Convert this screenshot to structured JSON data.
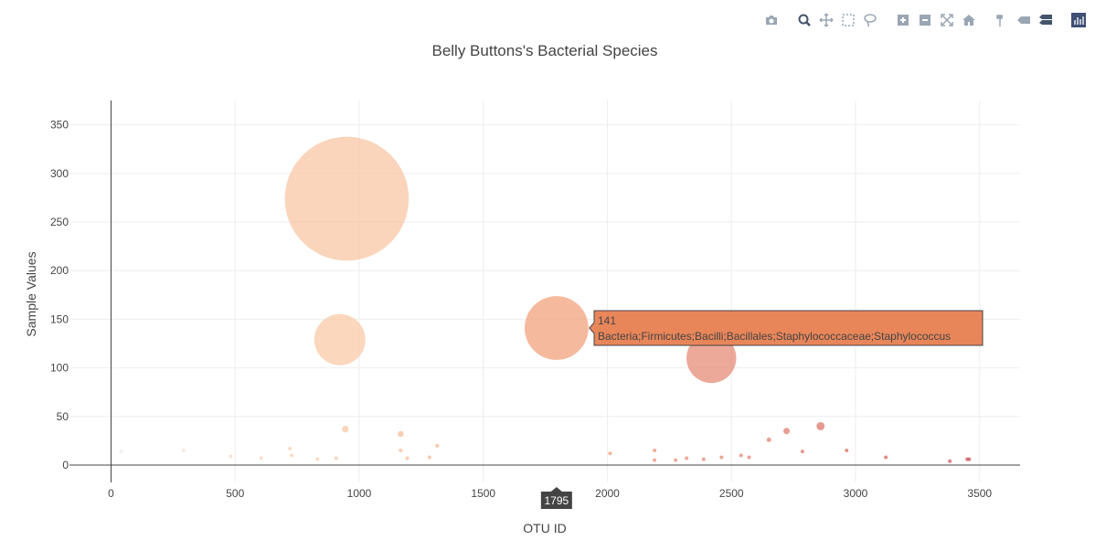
{
  "chart_data": {
    "type": "scatter",
    "title": "Belly Buttons's Bacterial Species",
    "xlabel": "OTU ID",
    "ylabel": "Sample Values",
    "xlim": [
      -160,
      3660
    ],
    "ylim": [
      -10,
      372
    ],
    "x_ticks": [
      "0",
      "500",
      "1000",
      "1500",
      "2000",
      "2500",
      "3000",
      "3500"
    ],
    "y_ticks": [
      "0",
      "50",
      "100",
      "150",
      "200",
      "250",
      "300",
      "350"
    ],
    "grid": true,
    "points": [
      {
        "x": 40,
        "y": 14,
        "size": 3
      },
      {
        "x": 292,
        "y": 15,
        "size": 3
      },
      {
        "x": 482,
        "y": 9,
        "size": 1
      },
      {
        "x": 605,
        "y": 7,
        "size": 1
      },
      {
        "x": 721,
        "y": 17,
        "size": 3
      },
      {
        "x": 728,
        "y": 10,
        "size": 1
      },
      {
        "x": 832,
        "y": 6,
        "size": 1
      },
      {
        "x": 907,
        "y": 7,
        "size": 1
      },
      {
        "x": 922,
        "y": 129,
        "size": 113
      },
      {
        "x": 944,
        "y": 37,
        "size": 15
      },
      {
        "x": 950,
        "y": 274,
        "size": 274
      },
      {
        "x": 1167,
        "y": 32,
        "size": 13
      },
      {
        "x": 1167,
        "y": 15,
        "size": 4
      },
      {
        "x": 1193,
        "y": 7,
        "size": 1
      },
      {
        "x": 1283,
        "y": 8,
        "size": 1
      },
      {
        "x": 1314,
        "y": 20,
        "size": 6
      },
      {
        "x": 1795,
        "y": 141,
        "size": 141
      },
      {
        "x": 2011,
        "y": 12,
        "size": 3
      },
      {
        "x": 2190,
        "y": 15,
        "size": 4
      },
      {
        "x": 2190,
        "y": 5,
        "size": 1
      },
      {
        "x": 2275,
        "y": 5,
        "size": 1
      },
      {
        "x": 2319,
        "y": 7,
        "size": 1
      },
      {
        "x": 2388,
        "y": 6,
        "size": 1
      },
      {
        "x": 2419,
        "y": 110,
        "size": 110
      },
      {
        "x": 2460,
        "y": 8,
        "size": 1
      },
      {
        "x": 2539,
        "y": 10,
        "size": 1
      },
      {
        "x": 2571,
        "y": 8,
        "size": 1
      },
      {
        "x": 2651,
        "y": 26,
        "size": 10
      },
      {
        "x": 2722,
        "y": 35,
        "size": 14
      },
      {
        "x": 2786,
        "y": 14,
        "size": 3
      },
      {
        "x": 2859,
        "y": 40,
        "size": 18
      },
      {
        "x": 2964,
        "y": 15,
        "size": 4
      },
      {
        "x": 3122,
        "y": 8,
        "size": 2
      },
      {
        "x": 3380,
        "y": 4,
        "size": 1
      },
      {
        "x": 3450,
        "y": 6,
        "size": 1
      },
      {
        "x": 3458,
        "y": 6,
        "size": 1
      }
    ],
    "hover": {
      "value": "141",
      "label": "Bacteria;Firmicutes;Bacilli;Bacillales;Staphylococcaceae;Staphylococcus",
      "x_value": "1795",
      "color": "#e8865a"
    },
    "colorscale": [
      "#eeeeee",
      "#f9c9a5",
      "#f2a07a",
      "#e07e6e",
      "#cc4c50"
    ]
  },
  "modebar": {
    "buttons": [
      {
        "icon": "camera-icon",
        "name": "download-plot-button"
      },
      {
        "icon": "zoom-icon",
        "name": "zoom-button"
      },
      {
        "icon": "pan-icon",
        "name": "pan-button"
      },
      {
        "icon": "box-select-icon",
        "name": "box-select-button"
      },
      {
        "icon": "lasso-icon",
        "name": "lasso-select-button"
      },
      {
        "icon": "zoom-in-icon",
        "name": "zoom-in-button"
      },
      {
        "icon": "zoom-out-icon",
        "name": "zoom-out-button"
      },
      {
        "icon": "autoscale-icon",
        "name": "autoscale-button"
      },
      {
        "icon": "home-icon",
        "name": "reset-axes-button"
      },
      {
        "icon": "spike-lines-icon",
        "name": "spike-lines-button"
      },
      {
        "icon": "hover-closest-icon",
        "name": "hover-closest-button"
      },
      {
        "icon": "hover-compare-icon",
        "name": "hover-compare-button"
      },
      {
        "icon": "plotly-logo-icon",
        "name": "plotly-logo-button"
      }
    ]
  }
}
